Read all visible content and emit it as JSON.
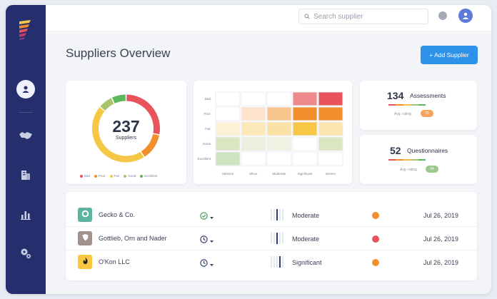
{
  "search": {
    "placeholder": "Search supplier"
  },
  "page": {
    "title": "Suppliers Overview",
    "add_button_label": "+ Add Supplier"
  },
  "donut": {
    "total": "237",
    "label": "Suppliers",
    "legend": [
      {
        "label": "Bad",
        "color": "#e8535c"
      },
      {
        "label": "Poor",
        "color": "#f28f2c"
      },
      {
        "label": "Fair",
        "color": "#f6c744"
      },
      {
        "label": "Good",
        "color": "#a9c46a"
      },
      {
        "label": "Excellent",
        "color": "#5cb85c"
      }
    ]
  },
  "heatmap": {
    "rows": [
      "Bad",
      "Poor",
      "Fair",
      "Good",
      "Excellent"
    ],
    "cols": [
      "Minimal",
      "Minor",
      "Moderate",
      "Significant",
      "Severe"
    ],
    "cells": [
      [
        "#ffffff",
        "#ffffff",
        "#ffffff",
        "#ee8a8d",
        "#e8535c"
      ],
      [
        "#ffffff",
        "#fde3cc",
        "#f9c58e",
        "#f28f2c",
        "#f28f2c"
      ],
      [
        "#fdf1d8",
        "#fce7b8",
        "#fbe1a5",
        "#f6c744",
        "#fbe6b0"
      ],
      [
        "#dbe6c3",
        "#eaf0dd",
        "#edf2e1",
        "#ffffff",
        "#dbe6c3"
      ],
      [
        "#cfe3c0",
        "#ffffff",
        "#ffffff",
        "#ffffff",
        "#ffffff"
      ]
    ]
  },
  "stats": [
    {
      "value": "134",
      "label": "Assessments",
      "avg_label": "Avg. rating",
      "rating": "75",
      "rating_color": "#f6a25a"
    },
    {
      "value": "52",
      "label": "Questionnaires",
      "avg_label": "Avg. rating",
      "rating": "94",
      "rating_color": "#9cc98a"
    }
  ],
  "suppliers": [
    {
      "name": "Gecko & Co.",
      "status": "check",
      "risk": "Moderate",
      "risk_level": 3,
      "dot_color": "#f28f2c",
      "date": "Jul 26, 2019",
      "icon_bg": "#5cb3a0",
      "icon": "ring-icon"
    },
    {
      "name": "Gottlieb, Orn and Nader",
      "status": "clock",
      "risk": "Moderate",
      "risk_level": 3,
      "dot_color": "#e8535c",
      "date": "Jul 26, 2019",
      "icon_bg": "#a3918d",
      "icon": "shield-icon"
    },
    {
      "name": "O'Kon LLC",
      "status": "clock",
      "risk": "Significant",
      "risk_level": 4,
      "dot_color": "#f28f2c",
      "date": "Jul 26, 2019",
      "icon_bg": "#f8c640",
      "icon": "flame-icon"
    }
  ]
}
